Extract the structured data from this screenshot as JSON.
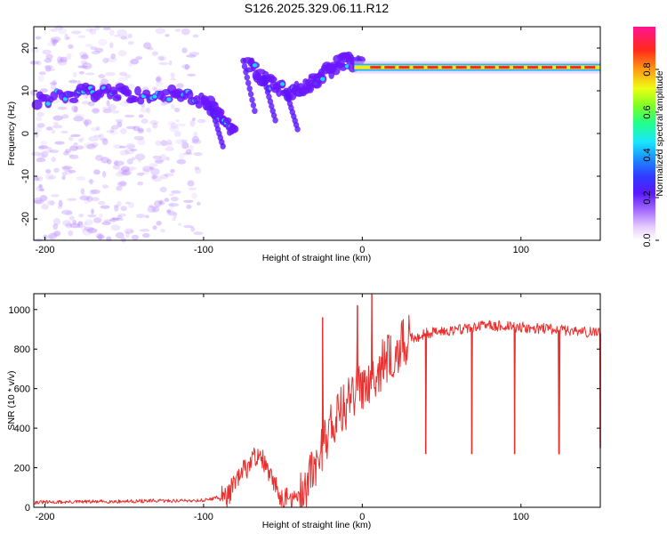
{
  "title": "S126.2025.329.06.11.R12",
  "colors": {
    "snr_line": "#e8312f",
    "spectro_low": "#6a16ff",
    "colormap": [
      "#ffffff",
      "#f2dcff",
      "#c79dff",
      "#7a24ff",
      "#3a27ff",
      "#1c8cff",
      "#19e6ff",
      "#27ff8e",
      "#9bff19",
      "#f5f012",
      "#ff8a12",
      "#ff2020",
      "#ff1493"
    ]
  },
  "chart_data": [
    {
      "type": "heatmap",
      "xlabel": "Height of straight line (km)",
      "ylabel": "Frequency (Hz)",
      "xlim": [
        -207,
        150
      ],
      "ylim": [
        -25,
        25
      ],
      "xticks": [
        -200,
        -100,
        0,
        100
      ],
      "yticks": [
        -20,
        -10,
        0,
        10,
        20
      ],
      "grid": false,
      "colorbar": {
        "label": "Normalized spectral amplitude",
        "range": [
          0,
          1
        ],
        "ticks": [
          0.0,
          0.2,
          0.4,
          0.6,
          0.8
        ]
      },
      "features": {
        "noise_region_x": [
          -207,
          -95
        ],
        "drifting_signal": [
          {
            "x": -205,
            "y": 8
          },
          {
            "x": -180,
            "y": 9
          },
          {
            "x": -160,
            "y": 10
          },
          {
            "x": -145,
            "y": 9
          },
          {
            "x": -120,
            "y": 9
          },
          {
            "x": -100,
            "y": 8
          },
          {
            "x": -90,
            "y": 4
          },
          {
            "x": -80,
            "y": 0
          },
          {
            "x": -72,
            "y": 16
          },
          {
            "x": -60,
            "y": 12
          },
          {
            "x": -45,
            "y": 9
          },
          {
            "x": -35,
            "y": 11
          },
          {
            "x": -25,
            "y": 14
          },
          {
            "x": -12,
            "y": 17
          },
          {
            "x": 0,
            "y": 16
          }
        ],
        "carrier_line": {
          "x_start": -5,
          "x_end": 150,
          "frequency_hz": 15.5,
          "amplitude": 0.95
        }
      }
    },
    {
      "type": "line",
      "xlabel": "Height of straight line (km)",
      "ylabel": "SNR (10 * v/v)",
      "xlim": [
        -207,
        150
      ],
      "ylim": [
        0,
        1080
      ],
      "xticks": [
        -200,
        -100,
        0,
        100
      ],
      "yticks": [
        0,
        200,
        400,
        600,
        800,
        1000
      ],
      "grid": false,
      "series": [
        {
          "points": [
            {
              "x": -207,
              "y": 25
            },
            {
              "x": -150,
              "y": 30
            },
            {
              "x": -100,
              "y": 35
            },
            {
              "x": -85,
              "y": 60
            },
            {
              "x": -75,
              "y": 180
            },
            {
              "x": -65,
              "y": 280
            },
            {
              "x": -58,
              "y": 150
            },
            {
              "x": -50,
              "y": 40
            },
            {
              "x": -40,
              "y": 35
            },
            {
              "x": -30,
              "y": 200
            },
            {
              "x": -20,
              "y": 420
            },
            {
              "x": -10,
              "y": 520
            },
            {
              "x": 0,
              "y": 620
            },
            {
              "x": 10,
              "y": 700
            },
            {
              "x": 20,
              "y": 780
            },
            {
              "x": 30,
              "y": 850
            },
            {
              "x": 40,
              "y": 880
            },
            {
              "x": 60,
              "y": 900
            },
            {
              "x": 80,
              "y": 920
            },
            {
              "x": 100,
              "y": 910
            },
            {
              "x": 120,
              "y": 900
            },
            {
              "x": 150,
              "y": 880
            }
          ],
          "dips": [
            {
              "x": 40,
              "y": 270
            },
            {
              "x": 69,
              "y": 270
            },
            {
              "x": 96,
              "y": 270
            },
            {
              "x": 124,
              "y": 270
            },
            {
              "x": 150,
              "y": 300
            }
          ],
          "spikes": [
            {
              "x": -25,
              "y": 960
            },
            {
              "x": -3,
              "y": 1020
            },
            {
              "x": 6,
              "y": 1080
            }
          ]
        }
      ]
    }
  ]
}
